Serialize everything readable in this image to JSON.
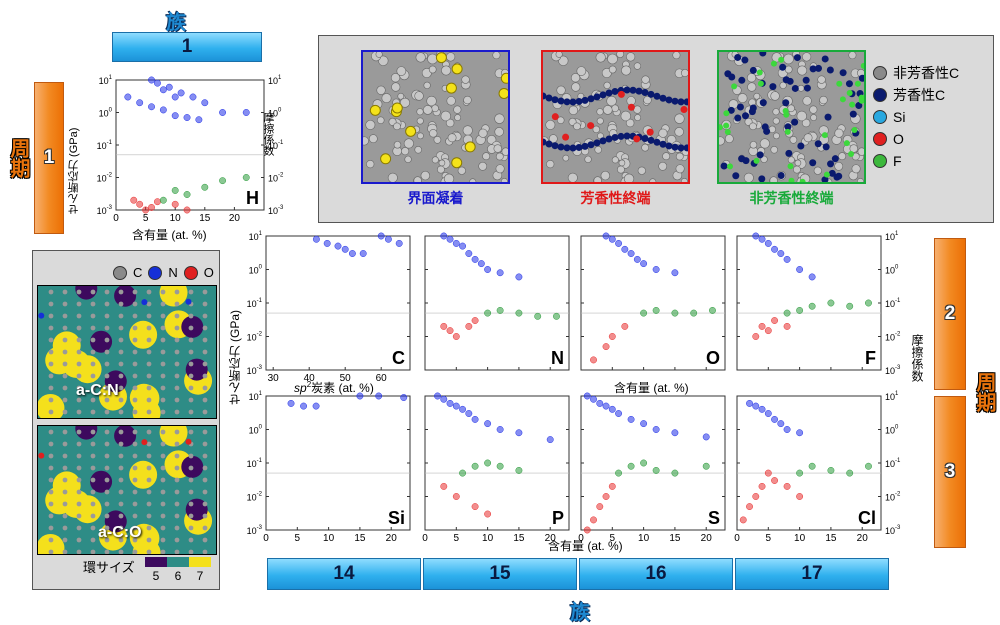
{
  "header": {
    "group_label_top": "族",
    "group_label_bottom": "族",
    "period_label_left": "周期",
    "period_label_right": "周期",
    "group_1": "1",
    "period_1": "1",
    "period_2": "2",
    "period_3": "3",
    "groups_bottom": [
      "14",
      "15",
      "16",
      "17"
    ]
  },
  "structures": {
    "panels": [
      {
        "caption": "界面凝着",
        "color": "#1a1acc"
      },
      {
        "caption": "芳香性終端",
        "color": "#e01818"
      },
      {
        "caption": "非芳香性終端",
        "color": "#18aa3a"
      }
    ],
    "legend": [
      {
        "label": "非芳香性C",
        "color": "#8a8a8a"
      },
      {
        "label": "芳香性C",
        "color": "#0a1a6e"
      },
      {
        "label": "Si",
        "color": "#29a8e0"
      },
      {
        "label": "O",
        "color": "#e02020"
      },
      {
        "label": "F",
        "color": "#3cb83c"
      }
    ]
  },
  "rings": {
    "legend": [
      {
        "label": "C",
        "color": "#8a8a8a"
      },
      {
        "label": "N",
        "color": "#1530d8"
      },
      {
        "label": "O",
        "color": "#e02020"
      }
    ],
    "panel_labels": [
      "a-C:N",
      "a-C:O"
    ],
    "size_title": "環サイズ",
    "sizes": [
      {
        "label": "5",
        "color": "#3d0a5e"
      },
      {
        "label": "6",
        "color": "#2e8c86"
      },
      {
        "label": "7",
        "color": "#f4e01c"
      }
    ]
  },
  "axes": {
    "ylabel_left": "せん断応力 (GPa)",
    "ylabel_right": "摩擦係数",
    "xlabel_content": "含有量 (at. %)",
    "xlabel_sp2_italic": "sp",
    "xlabel_sp2_sup": "2",
    "xlabel_sp2_rest": "炭素 (at. %)",
    "ytick_left": [
      "10",
      "10",
      "10",
      "10",
      "10",
      "10",
      "10"
    ],
    "ytick_left_exp": [
      "1",
      "0",
      "-1",
      "-2",
      "-3"
    ],
    "ytick_right_exp": [
      "1",
      "0",
      "-1",
      "-2",
      "-3"
    ]
  },
  "chart_data": [
    {
      "type": "scatter",
      "element": "H",
      "xlabel": "含有量 (at. %)",
      "xlim": [
        0,
        25
      ],
      "xticks": [
        0,
        5,
        10,
        15,
        20
      ],
      "ylabel": "せん断応力 (GPa)",
      "ylim_log": [
        -3,
        1
      ],
      "y2label": "摩擦係数",
      "y2lim_log": [
        -3,
        1
      ],
      "shear_blue": [
        [
          1,
          15
        ],
        [
          2,
          18
        ],
        [
          3,
          14
        ],
        [
          4,
          16
        ],
        [
          5,
          12
        ],
        [
          6,
          10
        ],
        [
          7,
          8
        ],
        [
          8,
          5
        ],
        [
          9,
          6
        ],
        [
          10,
          3
        ],
        [
          11,
          4
        ],
        [
          13,
          3
        ],
        [
          15,
          2
        ],
        [
          18,
          1
        ],
        [
          22,
          1
        ],
        [
          2,
          3
        ],
        [
          4,
          2
        ],
        [
          6,
          1.5
        ],
        [
          8,
          1.2
        ],
        [
          10,
          0.8
        ],
        [
          12,
          0.7
        ],
        [
          14,
          0.6
        ]
      ],
      "friction_red": [
        [
          3,
          0.002
        ],
        [
          4,
          0.0015
        ],
        [
          5,
          0.001
        ],
        [
          6,
          0.0012
        ],
        [
          7,
          0.0018
        ],
        [
          8,
          0.0008
        ],
        [
          10,
          0.0015
        ],
        [
          12,
          0.001
        ]
      ],
      "friction_green": [
        [
          8,
          0.002
        ],
        [
          10,
          0.004
        ],
        [
          12,
          0.003
        ],
        [
          15,
          0.005
        ],
        [
          18,
          0.008
        ],
        [
          22,
          0.01
        ]
      ]
    },
    {
      "type": "scatter",
      "element": "C",
      "xlabel": "sp2炭素 (at. %)",
      "xlim": [
        28,
        68
      ],
      "xticks": [
        30,
        40,
        50,
        60
      ],
      "shear_blue": [
        [
          35,
          18
        ],
        [
          38,
          17
        ],
        [
          40,
          19
        ],
        [
          42,
          18
        ],
        [
          44,
          17
        ],
        [
          45,
          16
        ],
        [
          46,
          18
        ],
        [
          48,
          17
        ],
        [
          50,
          16
        ],
        [
          52,
          15
        ],
        [
          55,
          14
        ],
        [
          58,
          12
        ],
        [
          60,
          10
        ],
        [
          62,
          8
        ],
        [
          65,
          6
        ],
        [
          42,
          8
        ],
        [
          45,
          6
        ],
        [
          48,
          5
        ],
        [
          50,
          4
        ],
        [
          52,
          3
        ],
        [
          55,
          3
        ]
      ]
    },
    {
      "type": "scatter",
      "element": "N",
      "xlabel": "含有量 (at. %)",
      "xlim": [
        0,
        23
      ],
      "xticks": [
        0,
        5,
        10,
        15,
        20
      ],
      "shear_blue": [
        [
          1,
          15
        ],
        [
          2,
          12
        ],
        [
          3,
          10
        ],
        [
          4,
          8
        ],
        [
          5,
          6
        ],
        [
          6,
          5
        ],
        [
          7,
          3
        ],
        [
          8,
          2
        ],
        [
          9,
          1.5
        ],
        [
          10,
          1
        ],
        [
          12,
          0.8
        ],
        [
          15,
          0.6
        ]
      ],
      "friction_red": [
        [
          3,
          0.02
        ],
        [
          4,
          0.015
        ],
        [
          5,
          0.01
        ],
        [
          7,
          0.02
        ],
        [
          8,
          0.03
        ]
      ],
      "friction_green": [
        [
          10,
          0.05
        ],
        [
          12,
          0.06
        ],
        [
          15,
          0.05
        ],
        [
          18,
          0.04
        ],
        [
          21,
          0.04
        ]
      ]
    },
    {
      "type": "scatter",
      "element": "O",
      "xlabel": "含有量 (at. %)",
      "xlim": [
        0,
        23
      ],
      "xticks": [
        0,
        5,
        10,
        15,
        20
      ],
      "shear_blue": [
        [
          1,
          15
        ],
        [
          2,
          14
        ],
        [
          3,
          12
        ],
        [
          4,
          10
        ],
        [
          5,
          8
        ],
        [
          6,
          6
        ],
        [
          7,
          4
        ],
        [
          8,
          3
        ],
        [
          9,
          2
        ],
        [
          10,
          1.5
        ],
        [
          12,
          1
        ],
        [
          15,
          0.8
        ]
      ],
      "friction_red": [
        [
          2,
          0.002
        ],
        [
          4,
          0.005
        ],
        [
          5,
          0.01
        ],
        [
          7,
          0.02
        ]
      ],
      "friction_green": [
        [
          10,
          0.05
        ],
        [
          12,
          0.06
        ],
        [
          15,
          0.05
        ],
        [
          18,
          0.05
        ],
        [
          21,
          0.06
        ]
      ]
    },
    {
      "type": "scatter",
      "element": "F",
      "xlabel": "含有量 (at. %)",
      "xlim": [
        0,
        23
      ],
      "xticks": [
        0,
        5,
        10,
        15,
        20
      ],
      "shear_blue": [
        [
          1,
          15
        ],
        [
          2,
          12
        ],
        [
          3,
          10
        ],
        [
          4,
          8
        ],
        [
          5,
          6
        ],
        [
          6,
          4
        ],
        [
          7,
          3
        ],
        [
          8,
          2
        ],
        [
          10,
          1
        ],
        [
          12,
          0.6
        ]
      ],
      "friction_red": [
        [
          3,
          0.01
        ],
        [
          4,
          0.02
        ],
        [
          5,
          0.015
        ],
        [
          6,
          0.03
        ],
        [
          8,
          0.02
        ]
      ],
      "friction_green": [
        [
          8,
          0.05
        ],
        [
          10,
          0.06
        ],
        [
          12,
          0.08
        ],
        [
          15,
          0.1
        ],
        [
          18,
          0.08
        ],
        [
          21,
          0.1
        ]
      ]
    },
    {
      "type": "scatter",
      "element": "Si",
      "xlabel": "含有量 (at. %)",
      "xlim": [
        0,
        23
      ],
      "xticks": [
        0,
        5,
        10,
        15,
        20
      ],
      "shear_blue": [
        [
          1,
          18
        ],
        [
          2,
          17
        ],
        [
          3,
          16
        ],
        [
          4,
          15
        ],
        [
          5,
          15
        ],
        [
          6,
          14
        ],
        [
          7,
          13
        ],
        [
          8,
          12
        ],
        [
          10,
          12
        ],
        [
          12,
          11
        ],
        [
          15,
          10
        ],
        [
          18,
          10
        ],
        [
          22,
          9
        ],
        [
          4,
          6
        ],
        [
          6,
          5
        ],
        [
          8,
          5
        ]
      ]
    },
    {
      "type": "scatter",
      "element": "P",
      "xlabel": "含有量 (at. %)",
      "xlim": [
        0,
        23
      ],
      "xticks": [
        0,
        5,
        10,
        15,
        20
      ],
      "shear_blue": [
        [
          1,
          12
        ],
        [
          2,
          10
        ],
        [
          3,
          8
        ],
        [
          4,
          6
        ],
        [
          5,
          5
        ],
        [
          6,
          4
        ],
        [
          7,
          3
        ],
        [
          8,
          2
        ],
        [
          10,
          1.5
        ],
        [
          12,
          1
        ],
        [
          15,
          0.8
        ],
        [
          20,
          0.5
        ]
      ],
      "friction_red": [
        [
          3,
          0.02
        ],
        [
          5,
          0.01
        ],
        [
          8,
          0.005
        ],
        [
          10,
          0.003
        ]
      ],
      "friction_green": [
        [
          6,
          0.05
        ],
        [
          8,
          0.08
        ],
        [
          10,
          0.1
        ],
        [
          12,
          0.08
        ],
        [
          15,
          0.06
        ]
      ]
    },
    {
      "type": "scatter",
      "element": "S",
      "xlabel": "含有量 (at. %)",
      "xlim": [
        0,
        23
      ],
      "xticks": [
        0,
        5,
        10,
        15,
        20
      ],
      "shear_blue": [
        [
          1,
          10
        ],
        [
          2,
          8
        ],
        [
          3,
          6
        ],
        [
          4,
          5
        ],
        [
          5,
          4
        ],
        [
          6,
          3
        ],
        [
          8,
          2
        ],
        [
          10,
          1.5
        ],
        [
          12,
          1
        ],
        [
          15,
          0.8
        ],
        [
          20,
          0.6
        ]
      ],
      "friction_red": [
        [
          1,
          0.001
        ],
        [
          2,
          0.002
        ],
        [
          3,
          0.005
        ],
        [
          4,
          0.01
        ],
        [
          5,
          0.02
        ]
      ],
      "friction_green": [
        [
          6,
          0.05
        ],
        [
          8,
          0.08
        ],
        [
          10,
          0.1
        ],
        [
          12,
          0.06
        ],
        [
          15,
          0.05
        ],
        [
          20,
          0.08
        ]
      ]
    },
    {
      "type": "scatter",
      "element": "Cl",
      "xlabel": "含有量 (at. %)",
      "xlim": [
        0,
        23
      ],
      "xticks": [
        0,
        5,
        10,
        15,
        20
      ],
      "shear_blue": [
        [
          2,
          6
        ],
        [
          3,
          5
        ],
        [
          4,
          4
        ],
        [
          5,
          3
        ],
        [
          6,
          2
        ],
        [
          7,
          1.5
        ],
        [
          8,
          1
        ],
        [
          10,
          0.8
        ]
      ],
      "friction_red": [
        [
          1,
          0.002
        ],
        [
          2,
          0.005
        ],
        [
          3,
          0.01
        ],
        [
          4,
          0.02
        ],
        [
          5,
          0.05
        ],
        [
          6,
          0.03
        ],
        [
          8,
          0.02
        ],
        [
          10,
          0.01
        ]
      ],
      "friction_green": [
        [
          10,
          0.05
        ],
        [
          12,
          0.08
        ],
        [
          15,
          0.06
        ],
        [
          18,
          0.05
        ],
        [
          21,
          0.08
        ]
      ]
    }
  ]
}
